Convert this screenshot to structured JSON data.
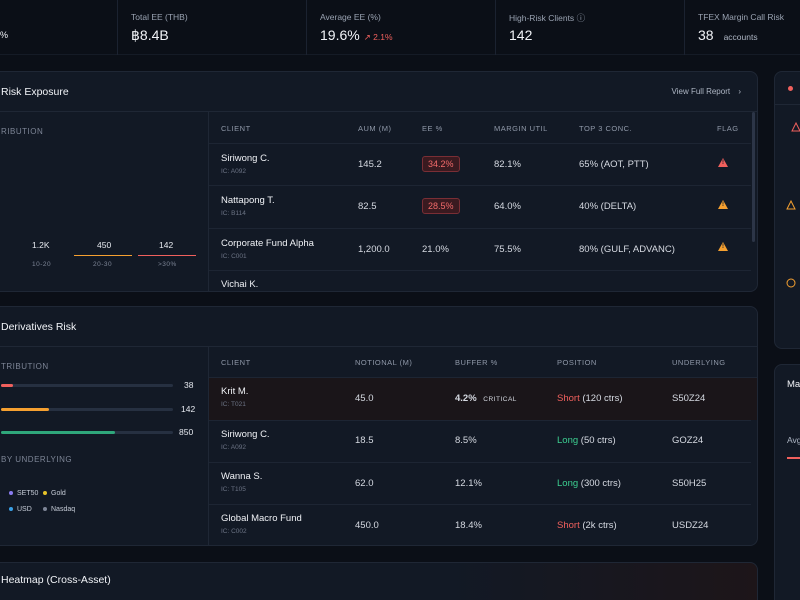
{
  "stats": {
    "first_value": "%",
    "total_ee": {
      "label": "Total EE (THB)",
      "value": "฿8.4B"
    },
    "average_ee": {
      "label": "Average EE (%)",
      "value": "19.6%",
      "change": "↗ 2.1%"
    },
    "high_risk": {
      "label": "High-Risk Clients",
      "info_icon": "ⓘ",
      "value": "142"
    },
    "margin_call": {
      "label": "TFEX Margin Call Risk",
      "value": "38",
      "unit": "accounts"
    }
  },
  "risk_panel": {
    "title": "Risk Exposure",
    "view_report": "View Full Report",
    "distribution_label": "RIBUTION",
    "histogram": [
      {
        "value": "1.2K",
        "label": "10-20",
        "highlight": "none"
      },
      {
        "value": "450",
        "label": "20-30",
        "highlight": "orange"
      },
      {
        "value": "142",
        "label": ">30%",
        "highlight": "red"
      }
    ],
    "columns": [
      "CLIENT",
      "AUM (M)",
      "EE %",
      "MARGIN UTIL",
      "TOP 3 CONC.",
      "FLAG"
    ],
    "rows": [
      {
        "client": "Siriwong C.",
        "id": "IC: A092",
        "aum": "145.2",
        "ee": "34.2%",
        "ee_style": "pill",
        "margin": "82.1%",
        "margin_style": "red",
        "conc": "65% (AOT, PTT)",
        "flag": "red"
      },
      {
        "client": "Nattapong T.",
        "id": "IC: B114",
        "aum": "82.5",
        "ee": "28.5%",
        "ee_style": "pill",
        "margin": "64.0%",
        "margin_style": "plain",
        "conc": "40% (DELTA)",
        "flag": "orange"
      },
      {
        "client": "Corporate Fund Alpha",
        "id": "IC: C001",
        "aum": "1,200.0",
        "ee": "21.0%",
        "ee_style": "orange",
        "margin": "75.5%",
        "margin_style": "orange",
        "conc": "80% (GULF, ADVANC)",
        "flag": "orange"
      },
      {
        "client": "Vichai K.",
        "id": "",
        "aum": "",
        "ee": "",
        "ee_style": "plain",
        "margin": "",
        "margin_style": "plain",
        "conc": "",
        "flag": "none"
      }
    ]
  },
  "deriv_panel": {
    "title": "Derivatives Risk",
    "distribution_label": "TRIBUTION",
    "bars": [
      {
        "value": "38",
        "fill": 0.07,
        "color": "#f0605d"
      },
      {
        "value": "142",
        "fill": 0.28,
        "color": "#f5a030"
      },
      {
        "value": "850",
        "fill": 0.66,
        "color": "#2fa77b"
      }
    ],
    "underlying_label": "BY UNDERLYING",
    "legend": [
      {
        "name": "SET50",
        "color": "#8a7cf0"
      },
      {
        "name": "Gold",
        "color": "#e6c229"
      },
      {
        "name": "USD",
        "color": "#3aa0e6"
      },
      {
        "name": "Nasdaq",
        "color": "#7d8596"
      }
    ],
    "columns": [
      "CLIENT",
      "NOTIONAL (M)",
      "BUFFER %",
      "POSITION",
      "UNDERLYING"
    ],
    "rows": [
      {
        "client": "Krit M.",
        "id": "IC: T021",
        "notional": "45.0",
        "buffer": "4.2%",
        "buffer_style": "red",
        "critical": "CRITICAL",
        "side": "Short",
        "side_style": "red",
        "ctrs": "(120 ctrs)",
        "underlying": "S50Z24"
      },
      {
        "client": "Siriwong C.",
        "id": "IC: A092",
        "notional": "18.5",
        "buffer": "8.5%",
        "buffer_style": "red",
        "critical": "",
        "side": "Long",
        "side_style": "green",
        "ctrs": "(50 ctrs)",
        "underlying": "GOZ24"
      },
      {
        "client": "Wanna S.",
        "id": "IC: T105",
        "notional": "62.0",
        "buffer": "12.1%",
        "buffer_style": "orange",
        "critical": "",
        "side": "Long",
        "side_style": "green",
        "ctrs": "(300 ctrs)",
        "underlying": "S50H25"
      },
      {
        "client": "Global Macro Fund",
        "id": "IC: C002",
        "notional": "450.0",
        "buffer": "18.4%",
        "buffer_style": "orange",
        "critical": "",
        "side": "Short",
        "side_style": "red",
        "ctrs": "(2k ctrs)",
        "underlying": "USDZ24"
      }
    ]
  },
  "heatmap_panel": {
    "title": "Heatmap (Cross-Asset)"
  },
  "side_panel": {
    "title_fragment": "Ma",
    "avg_fragment": "Avg"
  }
}
